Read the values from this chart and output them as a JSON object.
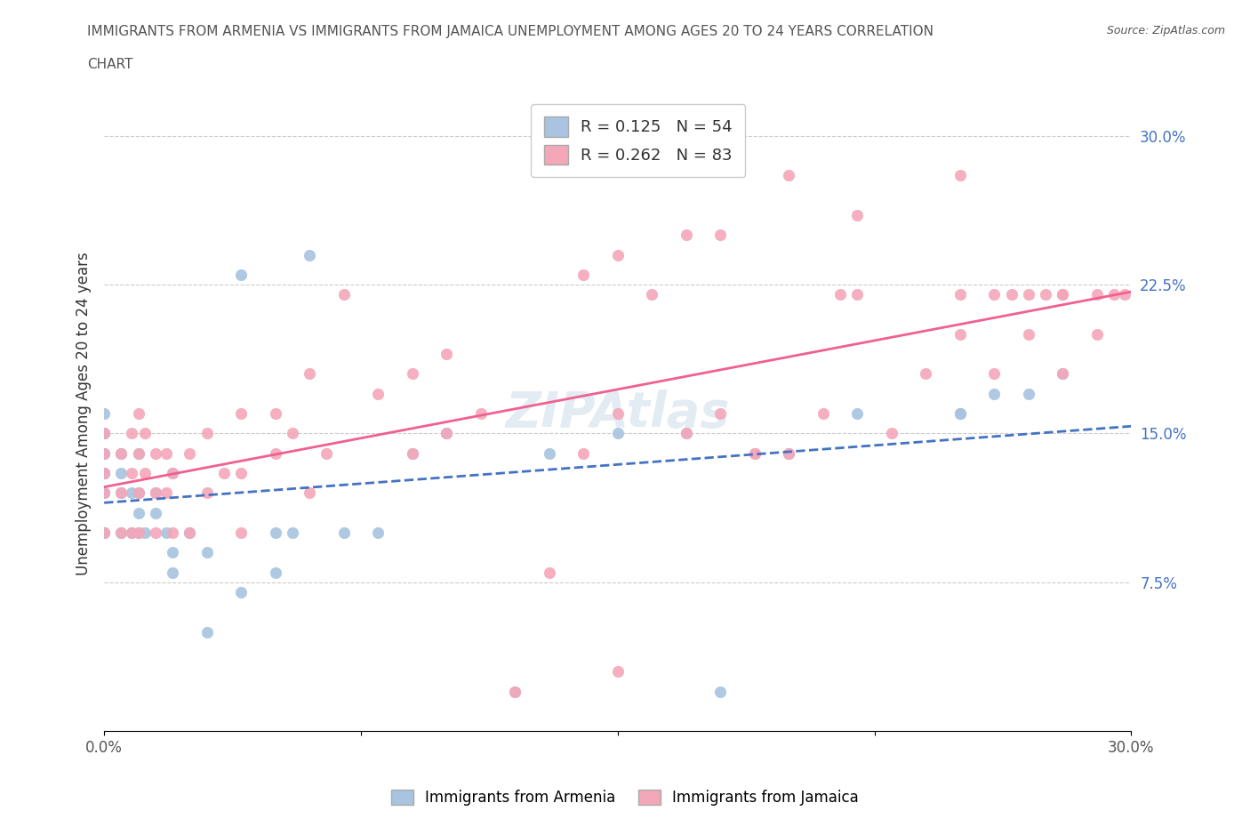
{
  "title": "IMMIGRANTS FROM ARMENIA VS IMMIGRANTS FROM JAMAICA UNEMPLOYMENT AMONG AGES 20 TO 24 YEARS CORRELATION\nCHART",
  "source_text": "Source: ZipAtlas.com",
  "xlabel": "",
  "ylabel": "Unemployment Among Ages 20 to 24 years",
  "xlim": [
    0.0,
    0.3
  ],
  "ylim": [
    0.0,
    0.32
  ],
  "xticks": [
    0.0,
    0.075,
    0.15,
    0.225,
    0.3
  ],
  "xticklabels": [
    "0.0%",
    "",
    "",
    "",
    "30.0%"
  ],
  "ytick_positions": [
    0.075,
    0.15,
    0.225,
    0.3
  ],
  "ytick_labels": [
    "7.5%",
    "15.0%",
    "22.5%",
    "30.0%"
  ],
  "armenia_color": "#a8c4e0",
  "jamaica_color": "#f4a7b9",
  "armenia_line_color": "#4472c4",
  "jamaica_line_color": "#f06090",
  "R_armenia": 0.125,
  "N_armenia": 54,
  "R_jamaica": 0.262,
  "N_jamaica": 83,
  "legend_label_armenia": "Immigrants from Armenia",
  "legend_label_jamaica": "Immigrants from Jamaica",
  "watermark": "ZIPAtlas",
  "armenia_x": [
    0.0,
    0.0,
    0.0,
    0.0,
    0.0,
    0.0,
    0.0,
    0.0,
    0.0,
    0.0,
    0.0,
    0.0,
    0.005,
    0.005,
    0.005,
    0.005,
    0.008,
    0.008,
    0.01,
    0.01,
    0.01,
    0.01,
    0.012,
    0.015,
    0.015,
    0.018,
    0.02,
    0.02,
    0.02,
    0.025,
    0.03,
    0.03,
    0.04,
    0.04,
    0.05,
    0.05,
    0.055,
    0.06,
    0.07,
    0.08,
    0.09,
    0.1,
    0.12,
    0.13,
    0.15,
    0.17,
    0.18,
    0.2,
    0.22,
    0.25,
    0.25,
    0.26,
    0.27,
    0.28
  ],
  "armenia_y": [
    0.1,
    0.1,
    0.12,
    0.12,
    0.13,
    0.13,
    0.13,
    0.14,
    0.14,
    0.15,
    0.15,
    0.16,
    0.1,
    0.12,
    0.13,
    0.14,
    0.1,
    0.12,
    0.1,
    0.11,
    0.12,
    0.14,
    0.1,
    0.11,
    0.12,
    0.1,
    0.08,
    0.09,
    0.13,
    0.1,
    0.05,
    0.09,
    0.07,
    0.23,
    0.08,
    0.1,
    0.1,
    0.24,
    0.1,
    0.1,
    0.14,
    0.15,
    0.02,
    0.14,
    0.15,
    0.15,
    0.02,
    0.14,
    0.16,
    0.16,
    0.16,
    0.17,
    0.17,
    0.18
  ],
  "jamaica_x": [
    0.0,
    0.0,
    0.0,
    0.0,
    0.0,
    0.005,
    0.005,
    0.005,
    0.008,
    0.008,
    0.008,
    0.01,
    0.01,
    0.01,
    0.01,
    0.012,
    0.012,
    0.015,
    0.015,
    0.015,
    0.018,
    0.018,
    0.02,
    0.02,
    0.025,
    0.025,
    0.03,
    0.03,
    0.035,
    0.04,
    0.04,
    0.04,
    0.05,
    0.05,
    0.055,
    0.06,
    0.06,
    0.065,
    0.07,
    0.08,
    0.09,
    0.09,
    0.1,
    0.1,
    0.11,
    0.12,
    0.13,
    0.14,
    0.15,
    0.15,
    0.16,
    0.17,
    0.18,
    0.19,
    0.2,
    0.21,
    0.22,
    0.23,
    0.24,
    0.25,
    0.25,
    0.26,
    0.27,
    0.27,
    0.28,
    0.28,
    0.29,
    0.29,
    0.295,
    0.298,
    0.2,
    0.22,
    0.14,
    0.15,
    0.17,
    0.18,
    0.19,
    0.215,
    0.25,
    0.26,
    0.265,
    0.275,
    0.28
  ],
  "jamaica_y": [
    0.1,
    0.12,
    0.13,
    0.14,
    0.15,
    0.1,
    0.12,
    0.14,
    0.1,
    0.13,
    0.15,
    0.1,
    0.12,
    0.14,
    0.16,
    0.13,
    0.15,
    0.1,
    0.12,
    0.14,
    0.12,
    0.14,
    0.1,
    0.13,
    0.1,
    0.14,
    0.12,
    0.15,
    0.13,
    0.1,
    0.13,
    0.16,
    0.14,
    0.16,
    0.15,
    0.12,
    0.18,
    0.14,
    0.22,
    0.17,
    0.14,
    0.18,
    0.15,
    0.19,
    0.16,
    0.02,
    0.08,
    0.14,
    0.03,
    0.16,
    0.22,
    0.15,
    0.16,
    0.14,
    0.14,
    0.16,
    0.22,
    0.15,
    0.18,
    0.2,
    0.22,
    0.18,
    0.2,
    0.22,
    0.18,
    0.22,
    0.22,
    0.2,
    0.22,
    0.22,
    0.28,
    0.26,
    0.23,
    0.24,
    0.25,
    0.25,
    0.14,
    0.22,
    0.28,
    0.22,
    0.22,
    0.22,
    0.22
  ]
}
